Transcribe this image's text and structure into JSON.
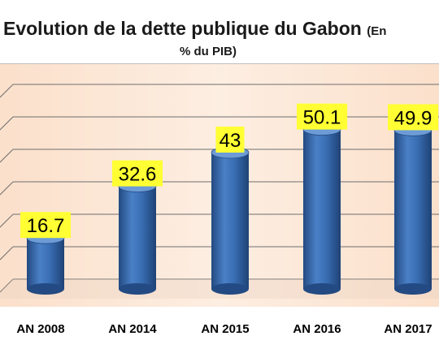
{
  "chart_data": {
    "type": "bar",
    "title": "Evolution de la dette publique du Gabon",
    "title_unit": "(En",
    "subtitle": "% du PIB)",
    "categories": [
      "AN 2008",
      "AN 2014",
      "AN 2015",
      "AN 2016",
      "AN 2017"
    ],
    "values": [
      16.7,
      32.6,
      43,
      50.1,
      49.9
    ],
    "value_labels": [
      "16.7",
      "32.6",
      "43",
      "50.1",
      "49.9"
    ],
    "ylim": [
      0,
      60
    ],
    "grid": true,
    "legend": "none",
    "colors": {
      "bar": "#3a6fb5",
      "bar_dark": "#234a82",
      "bar_light": "#6d9bd6",
      "label_bg": "#ffff33",
      "plot_bg": "#fce6d4",
      "grid": "#6e6e6e"
    }
  }
}
